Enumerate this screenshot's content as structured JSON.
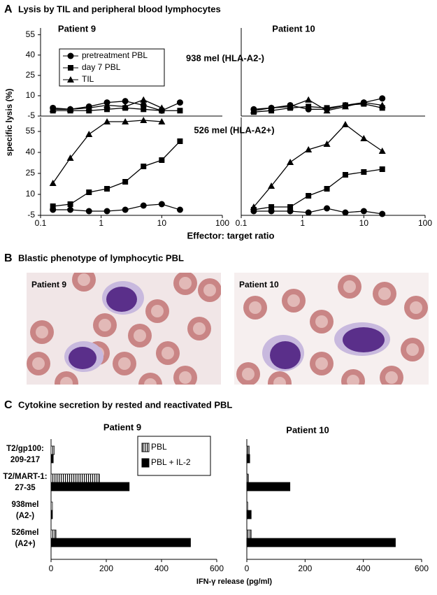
{
  "panel_a": {
    "letter": "A",
    "title": "Lysis by TIL and peripheral blood lymphocytes",
    "y_label": "specific lysis (%)",
    "x_label": "Effector: target ratio"
  },
  "panel_b": {
    "letter": "B",
    "title": "Blastic phenotype of lymphocytic PBL",
    "images": [
      {
        "label": "Patient 9"
      },
      {
        "label": "Patient 10"
      }
    ]
  },
  "panel_c": {
    "letter": "C",
    "title": "Cytokine secretion by rested and reactivated PBL",
    "x_label": "IFN-γ release (pg/ml)"
  },
  "chart_data": [
    {
      "type": "line",
      "title": "Patient 9",
      "annotation": "938 mel (HLA-A2-)",
      "legend": "upper left",
      "x": [
        0.16,
        0.31,
        0.63,
        1.25,
        2.5,
        5,
        10,
        20
      ],
      "x_scale": "log",
      "xlim": [
        0.1,
        100
      ],
      "ylim": [
        -5,
        60
      ],
      "yticks": [
        -5,
        10,
        25,
        40,
        55
      ],
      "series": [
        {
          "name": "pretreatment PBL",
          "color": "#000000",
          "marker": "circle",
          "values": [
            1,
            0,
            2,
            5,
            6,
            3,
            -1,
            5
          ]
        },
        {
          "name": "day 7 PBL",
          "color": "#000000",
          "marker": "square",
          "values": [
            -1,
            -1,
            -1,
            0,
            1,
            0,
            -1,
            -1
          ]
        },
        {
          "name": "TIL",
          "color": "#000000",
          "marker": "triangle",
          "values": [
            0,
            0,
            1,
            3,
            2,
            7,
            1,
            null
          ]
        }
      ]
    },
    {
      "type": "line",
      "title": "Patient 10",
      "x": [
        0.16,
        0.31,
        0.63,
        1.25,
        2.5,
        5,
        10,
        20
      ],
      "x_scale": "log",
      "xlim": [
        0.1,
        100
      ],
      "ylim": [
        -5,
        60
      ],
      "series": [
        {
          "color": "#000000",
          "marker": "circle",
          "values": [
            0,
            1,
            3,
            0,
            0,
            3,
            5,
            8
          ]
        },
        {
          "color": "#000000",
          "marker": "square",
          "values": [
            -2,
            -1,
            1,
            2,
            1,
            3,
            4,
            1
          ]
        },
        {
          "color": "#000000",
          "marker": "triangle",
          "values": [
            -1,
            1,
            2,
            7,
            -1,
            2,
            5,
            3
          ]
        }
      ]
    },
    {
      "type": "line",
      "annotation": "526 mel (HLA-A2+)",
      "x": [
        0.16,
        0.31,
        0.63,
        1.25,
        2.5,
        5,
        10,
        20
      ],
      "x_scale": "log",
      "xlim": [
        0.1,
        100
      ],
      "xticks": [
        0.1,
        1,
        10,
        100
      ],
      "ylim": [
        -5,
        65
      ],
      "yticks": [
        -5,
        10,
        25,
        40,
        55
      ],
      "series": [
        {
          "color": "#000000",
          "marker": "circle",
          "values": [
            -1,
            -1,
            -2,
            -2,
            -1,
            2,
            3,
            -1
          ]
        },
        {
          "color": "#000000",
          "marker": "square",
          "values": [
            1.5,
            3,
            11.5,
            14,
            19,
            30,
            34.5,
            48
          ]
        },
        {
          "color": "#000000",
          "marker": "triangle",
          "values": [
            18,
            36,
            53,
            62,
            62,
            63,
            62,
            null
          ]
        }
      ]
    },
    {
      "type": "line",
      "x": [
        0.16,
        0.31,
        0.63,
        1.25,
        2.5,
        5,
        10,
        20
      ],
      "x_scale": "log",
      "xlim": [
        0.1,
        100
      ],
      "xticks": [
        0.1,
        1,
        10,
        100
      ],
      "ylim": [
        -5,
        65
      ],
      "series": [
        {
          "color": "#000000",
          "marker": "circle",
          "values": [
            -2,
            -2,
            -2,
            -3,
            0,
            -3,
            -2,
            -4
          ]
        },
        {
          "color": "#000000",
          "marker": "square",
          "values": [
            -1,
            1,
            1,
            9,
            14,
            24,
            26,
            28
          ]
        },
        {
          "color": "#000000",
          "marker": "triangle",
          "values": [
            1,
            16,
            33,
            42,
            46,
            60,
            50,
            41
          ]
        }
      ]
    },
    {
      "type": "barh",
      "title": "Patient 9",
      "legend": "upper right",
      "categories": [
        "T2/gp100:\n209-217",
        "T2/MART-1:\n27-35",
        "938mel\n(A2-)",
        "526mel\n(A2+)"
      ],
      "xlim": [
        0,
        600
      ],
      "xticks": [
        0,
        200,
        400,
        600
      ],
      "series": [
        {
          "name": "PBL",
          "color": "#000000",
          "pattern": "vertical-stripes",
          "values": [
            12,
            175,
            5,
            18
          ]
        },
        {
          "name": "PBL + IL-2",
          "color": "#000000",
          "values": [
            8,
            283,
            5,
            505
          ]
        }
      ]
    },
    {
      "type": "barh",
      "title": "Patient 10",
      "xlim": [
        0,
        600
      ],
      "xticks": [
        0,
        200,
        400,
        600
      ],
      "series": [
        {
          "color": "#000000",
          "pattern": "vertical-stripes",
          "values": [
            8,
            5,
            3,
            15
          ]
        },
        {
          "color": "#000000",
          "values": [
            10,
            148,
            15,
            510
          ]
        }
      ]
    }
  ]
}
